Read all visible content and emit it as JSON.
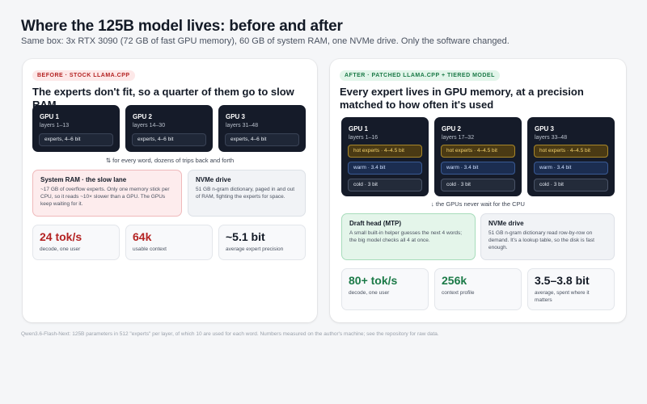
{
  "title": "Where the 125B model lives: before and after",
  "subtitle": "Same box: 3x RTX 3090 (72 GB of fast GPU memory), 60 GB of system RAM, one NVMe drive. Only the software changed.",
  "before": {
    "badge": "BEFORE · STOCK LLAMA.CPP",
    "heading": "The experts don't fit, so a quarter of them go to slow RAM",
    "gpus": [
      {
        "name": "GPU 1",
        "layers": "layers 1–13",
        "chip": "experts, 4–6 bit"
      },
      {
        "name": "GPU 2",
        "layers": "layers 14–30",
        "chip": "experts, 4–6 bit"
      },
      {
        "name": "GPU 3",
        "layers": "layers 31–48",
        "chip": "experts, 4–6 bit"
      }
    ],
    "arrow_note": "⇅ for every word, dozens of trips back and forth",
    "ram": {
      "title": "System RAM · the slow lane",
      "desc": "~17 GB of overflow experts. Only one memory stick per CPU, so it reads ~10× slower than a GPU. The GPUs keep waiting for it."
    },
    "nvme": {
      "title": "NVMe drive",
      "desc": "51 GB n-gram dictionary, paged in and out of RAM, fighting the experts for space."
    },
    "stats": [
      {
        "value": "24 tok/s",
        "label": "decode, one user"
      },
      {
        "value": "64k",
        "label": "usable context"
      },
      {
        "value": "~5.1 bit",
        "label": "average expert precision"
      }
    ]
  },
  "after": {
    "badge": "AFTER · PATCHED LLAMA.CPP + TIERED MODEL",
    "heading": "Every expert lives in GPU memory, at a precision matched to how often it's used",
    "gpus": [
      {
        "name": "GPU 1",
        "layers": "layers 1–16",
        "hot": "hot experts · 4–4.5 bit",
        "warm": "warm · 3.4 bit",
        "cold": "cold · 3 bit"
      },
      {
        "name": "GPU 2",
        "layers": "layers 17–32",
        "hot": "hot experts · 4–4.5 bit",
        "warm": "warm · 3.4 bit",
        "cold": "cold · 3 bit"
      },
      {
        "name": "GPU 3",
        "layers": "layers 33–48",
        "hot": "hot experts · 4–4.5 bit",
        "warm": "warm · 3.4 bit",
        "cold": "cold · 3 bit"
      }
    ],
    "arrow_note": "↓ the GPUs never wait for the CPU",
    "draft": {
      "title": "Draft head (MTP)",
      "desc": "A small built-in helper guesses the next 4 words; the big model checks all 4 at once."
    },
    "nvme": {
      "title": "NVMe drive",
      "desc": "51 GB n-gram dictionary read row-by-row on demand. It's a lookup table, so the disk is fast enough."
    },
    "stats": [
      {
        "value": "80+ tok/s",
        "label": "decode, one user"
      },
      {
        "value": "256k",
        "label": "context profile"
      },
      {
        "value": "3.5–3.8 bit",
        "label": "average, spent where it matters"
      }
    ]
  },
  "footnote": "Qwen3.6-Flash-Next: 125B parameters in 512 \"experts\" per layer, of which 10 are used for each word. Numbers measured on the author's machine; see the repository for raw data."
}
